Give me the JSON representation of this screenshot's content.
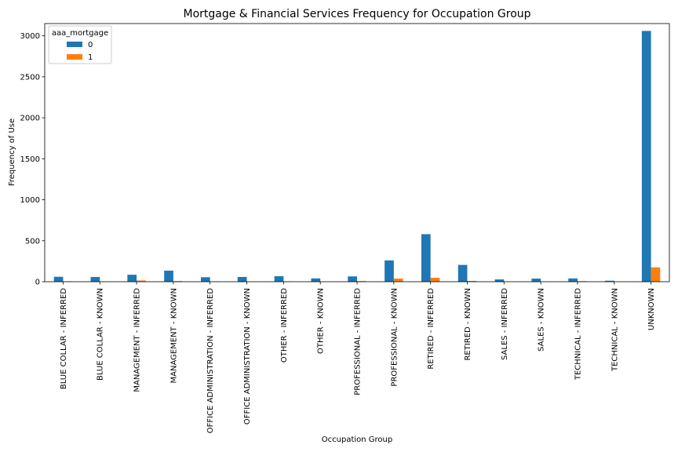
{
  "chart_data": {
    "type": "bar",
    "title": "Mortgage & Financial Services Frequency for Occupation Group",
    "xlabel": "Occupation Group",
    "ylabel": "Frequency of Use",
    "ylim": [
      0,
      3150
    ],
    "yticks": [
      0,
      500,
      1000,
      1500,
      2000,
      2500,
      3000
    ],
    "grid": false,
    "legend": {
      "title": "aaa_mortgage",
      "placement": "top-left"
    },
    "categories": [
      "BLUE COLLAR - INFERRED",
      "BLUE COLLAR - KNOWN",
      "MANAGEMENT - INFERRED",
      "MANAGEMENT - KNOWN",
      "OFFICE ADMINISTRATION - INFERRED",
      "OFFICE ADMINISTRATION - KNOWN",
      "OTHER - INFERRED",
      "OTHER - KNOWN",
      "PROFESSIONAL - INFERRED",
      "PROFESSIONAL - KNOWN",
      "RETIRED - INFERRED",
      "RETIRED - KNOWN",
      "SALES - INFERRED",
      "SALES - KNOWN",
      "TECHNICAL - INFERRED",
      "TECHNICAL - KNOWN",
      "UNKNOWN"
    ],
    "series": [
      {
        "name": "0",
        "color": "#1f77b4",
        "values": [
          60,
          58,
          85,
          135,
          55,
          58,
          67,
          40,
          65,
          260,
          580,
          205,
          28,
          38,
          40,
          12,
          3060
        ]
      },
      {
        "name": "1",
        "color": "#ff7f0e",
        "values": [
          5,
          2,
          15,
          8,
          3,
          2,
          5,
          2,
          8,
          38,
          48,
          10,
          2,
          2,
          7,
          2,
          175
        ]
      }
    ]
  }
}
